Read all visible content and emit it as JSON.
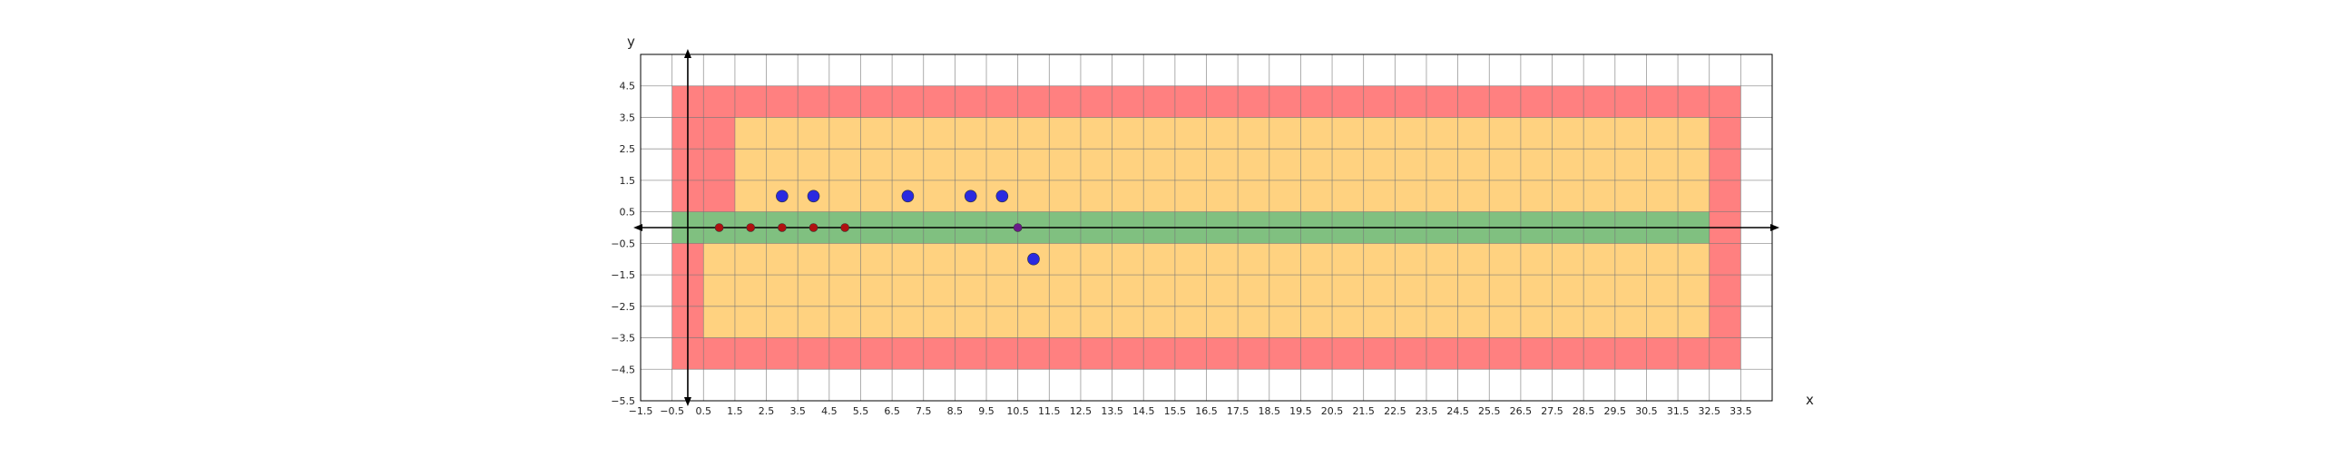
{
  "chart_data": {
    "type": "scatter",
    "title": "",
    "xlabel": "x",
    "ylabel": "y",
    "xlim": [
      -1.5,
      34.5
    ],
    "ylim": [
      -5.5,
      5.5
    ],
    "grid": true,
    "x_ticks": [
      -1.5,
      -0.5,
      0.5,
      1.5,
      2.5,
      3.5,
      4.5,
      5.5,
      6.5,
      7.5,
      8.5,
      9.5,
      10.5,
      11.5,
      12.5,
      13.5,
      14.5,
      15.5,
      16.5,
      17.5,
      18.5,
      19.5,
      20.5,
      21.5,
      22.5,
      23.5,
      24.5,
      25.5,
      26.5,
      27.5,
      28.5,
      29.5,
      30.5,
      31.5,
      32.5,
      33.5
    ],
    "x_tick_labels": [
      "−1.5",
      "−0.5",
      "0.5",
      "1.5",
      "2.5",
      "3.5",
      "4.5",
      "5.5",
      "6.5",
      "7.5",
      "8.5",
      "9.5",
      "10.5",
      "11.5",
      "12.5",
      "13.5",
      "14.5",
      "15.5",
      "16.5",
      "17.5",
      "18.5",
      "19.5",
      "20.5",
      "21.5",
      "22.5",
      "23.5",
      "24.5",
      "25.5",
      "26.5",
      "27.5",
      "28.5",
      "29.5",
      "30.5",
      "31.5",
      "32.5",
      "33.5"
    ],
    "y_ticks": [
      4.5,
      3.5,
      2.5,
      1.5,
      0.5,
      -0.5,
      -1.5,
      -2.5,
      -3.5,
      -4.5,
      -5.5
    ],
    "y_tick_labels": [
      "4.5",
      "3.5",
      "2.5",
      "1.5",
      "0.5",
      "−0.5",
      "−1.5",
      "−2.5",
      "−3.5",
      "−4.5",
      "−5.5"
    ],
    "regions": [
      {
        "name": "outer",
        "color": "#ff8080",
        "x": [
          -0.5,
          33.5
        ],
        "y": [
          -4.5,
          4.5
        ]
      },
      {
        "name": "upper-inner",
        "color": "#ffd280",
        "x": [
          1.5,
          32.5
        ],
        "y": [
          0.5,
          3.5
        ]
      },
      {
        "name": "lower-inner",
        "color": "#ffd280",
        "x": [
          0.5,
          32.5
        ],
        "y": [
          -3.5,
          -0.5
        ]
      },
      {
        "name": "band",
        "color": "#80c080",
        "x": [
          -0.5,
          32.5
        ],
        "y": [
          -0.5,
          0.5
        ]
      }
    ],
    "series": [
      {
        "color": "#b01010",
        "radius": "small",
        "points": [
          [
            1,
            0
          ],
          [
            2,
            0
          ],
          [
            3,
            0
          ],
          [
            4,
            0
          ],
          [
            5,
            0
          ]
        ]
      },
      {
        "color": "#6a1a8a",
        "radius": "small",
        "points": [
          [
            10.5,
            0
          ]
        ]
      },
      {
        "color": "#2a2ae0",
        "radius": "large",
        "points": [
          [
            3,
            1
          ],
          [
            4,
            1
          ],
          [
            7,
            1
          ],
          [
            9,
            1
          ],
          [
            10,
            1
          ],
          [
            11,
            -1
          ]
        ]
      }
    ]
  }
}
